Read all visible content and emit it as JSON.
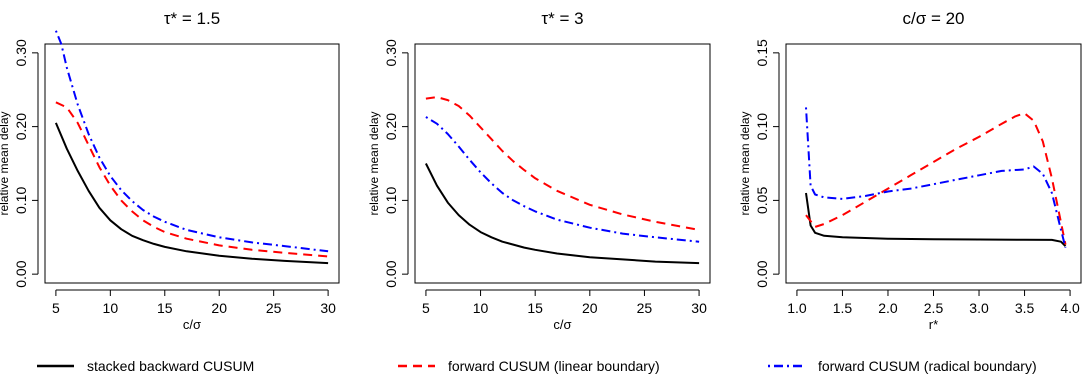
{
  "chart_data": [
    {
      "type": "line",
      "title": "τ* = 1.5",
      "xlabel": "c/σ",
      "ylabel": "relative mean delay",
      "xlim": [
        5,
        30
      ],
      "ylim": [
        0,
        0.3
      ],
      "xticks": [
        5,
        10,
        15,
        20,
        25,
        30
      ],
      "yticks": [
        0,
        0.1,
        0.2,
        0.3
      ],
      "xtick_labels": [
        "5",
        "10",
        "15",
        "20",
        "25",
        "30"
      ],
      "ytick_labels": [
        "0.00",
        "0.10",
        "0.20",
        "0.30"
      ],
      "series": [
        {
          "name": "stacked backward CUSUM",
          "color": "#000000",
          "dash": "solid",
          "x": [
            5,
            6,
            7,
            8,
            9,
            10,
            11,
            12,
            13,
            14,
            15,
            17,
            20,
            23,
            26,
            30
          ],
          "y": [
            0.205,
            0.17,
            0.14,
            0.113,
            0.09,
            0.073,
            0.061,
            0.052,
            0.046,
            0.041,
            0.037,
            0.031,
            0.025,
            0.021,
            0.018,
            0.015
          ]
        },
        {
          "name": "forward CUSUM (linear boundary)",
          "color": "#ff0000",
          "dash": "dashed",
          "x": [
            5,
            6,
            7,
            8,
            9,
            10,
            11,
            12,
            13,
            14,
            15,
            17,
            20,
            23,
            26,
            30
          ],
          "y": [
            0.233,
            0.226,
            0.205,
            0.175,
            0.145,
            0.12,
            0.1,
            0.085,
            0.073,
            0.064,
            0.057,
            0.048,
            0.039,
            0.033,
            0.029,
            0.024
          ]
        },
        {
          "name": "forward CUSUM (radical boundary)",
          "color": "#0000ff",
          "dash": "dotdash",
          "x": [
            5,
            5.5,
            6,
            7,
            8,
            9,
            10,
            11,
            12,
            13,
            14,
            15,
            17,
            20,
            23,
            26,
            30
          ],
          "y": [
            0.33,
            0.312,
            0.28,
            0.23,
            0.19,
            0.158,
            0.133,
            0.114,
            0.099,
            0.087,
            0.078,
            0.071,
            0.06,
            0.05,
            0.043,
            0.038,
            0.031
          ]
        }
      ]
    },
    {
      "type": "line",
      "title": "τ* = 3",
      "xlabel": "c/σ",
      "ylabel": "relative mean delay",
      "xlim": [
        5,
        30
      ],
      "ylim": [
        0,
        0.3
      ],
      "xticks": [
        5,
        10,
        15,
        20,
        25,
        30
      ],
      "yticks": [
        0,
        0.1,
        0.2,
        0.3
      ],
      "xtick_labels": [
        "5",
        "10",
        "15",
        "20",
        "25",
        "30"
      ],
      "ytick_labels": [
        "0.00",
        "0.10",
        "0.20",
        "0.30"
      ],
      "series": [
        {
          "name": "stacked backward CUSUM",
          "color": "#000000",
          "dash": "solid",
          "x": [
            5,
            6,
            7,
            8,
            9,
            10,
            11,
            12,
            13,
            14,
            15,
            17,
            20,
            23,
            26,
            30
          ],
          "y": [
            0.15,
            0.12,
            0.097,
            0.08,
            0.067,
            0.057,
            0.05,
            0.044,
            0.04,
            0.036,
            0.033,
            0.028,
            0.023,
            0.02,
            0.017,
            0.015
          ]
        },
        {
          "name": "forward CUSUM (linear boundary)",
          "color": "#ff0000",
          "dash": "dashed",
          "x": [
            5,
            6,
            7,
            8,
            9,
            10,
            11,
            12,
            13,
            14,
            15,
            17,
            20,
            23,
            26,
            30
          ],
          "y": [
            0.238,
            0.24,
            0.236,
            0.228,
            0.215,
            0.199,
            0.183,
            0.167,
            0.153,
            0.141,
            0.13,
            0.113,
            0.094,
            0.081,
            0.071,
            0.06
          ]
        },
        {
          "name": "forward CUSUM (radical boundary)",
          "color": "#0000ff",
          "dash": "dotdash",
          "x": [
            5,
            6,
            7,
            8,
            9,
            10,
            11,
            12,
            13,
            14,
            15,
            17,
            20,
            23,
            26,
            30
          ],
          "y": [
            0.213,
            0.204,
            0.19,
            0.173,
            0.155,
            0.138,
            0.123,
            0.11,
            0.1,
            0.092,
            0.085,
            0.074,
            0.063,
            0.055,
            0.05,
            0.044
          ]
        }
      ]
    },
    {
      "type": "line",
      "title": "c/σ = 20",
      "xlabel": "r*",
      "ylabel": "relative mean delay",
      "xlim": [
        1.0,
        4.0
      ],
      "ylim": [
        0,
        0.15
      ],
      "xticks": [
        1.0,
        1.5,
        2.0,
        2.5,
        3.0,
        3.5,
        4.0
      ],
      "yticks": [
        0,
        0.05,
        0.1,
        0.15
      ],
      "xtick_labels": [
        "1.0",
        "1.5",
        "2.0",
        "2.5",
        "3.0",
        "3.5",
        "4.0"
      ],
      "ytick_labels": [
        "0.00",
        "0.05",
        "0.10",
        "0.15"
      ],
      "series": [
        {
          "name": "stacked backward CUSUM",
          "color": "#000000",
          "dash": "solid",
          "x": [
            1.1,
            1.15,
            1.2,
            1.3,
            1.5,
            2.0,
            2.5,
            3.0,
            3.5,
            3.8,
            3.9,
            3.95
          ],
          "y": [
            0.055,
            0.033,
            0.028,
            0.026,
            0.025,
            0.024,
            0.0237,
            0.0235,
            0.0233,
            0.0232,
            0.022,
            0.019
          ]
        },
        {
          "name": "forward CUSUM (linear boundary)",
          "color": "#ff0000",
          "dash": "dashed",
          "x": [
            1.1,
            1.2,
            1.3,
            1.5,
            1.75,
            2.0,
            2.25,
            2.5,
            2.75,
            3.0,
            3.25,
            3.4,
            3.5,
            3.6,
            3.7,
            3.8,
            3.9,
            3.95
          ],
          "y": [
            0.04,
            0.032,
            0.034,
            0.04,
            0.049,
            0.058,
            0.067,
            0.076,
            0.085,
            0.093,
            0.102,
            0.107,
            0.109,
            0.104,
            0.09,
            0.065,
            0.035,
            0.02
          ]
        },
        {
          "name": "forward CUSUM (radical boundary)",
          "color": "#0000ff",
          "dash": "dotdash",
          "x": [
            1.1,
            1.15,
            1.2,
            1.3,
            1.5,
            1.75,
            2.0,
            2.25,
            2.5,
            2.75,
            3.0,
            3.25,
            3.5,
            3.6,
            3.7,
            3.8,
            3.9,
            3.95
          ],
          "y": [
            0.113,
            0.06,
            0.054,
            0.052,
            0.051,
            0.053,
            0.056,
            0.058,
            0.061,
            0.064,
            0.067,
            0.07,
            0.071,
            0.073,
            0.068,
            0.055,
            0.03,
            0.018
          ]
        }
      ]
    }
  ],
  "legend": [
    {
      "label": "stacked backward CUSUM",
      "color": "#000000",
      "dash": "solid"
    },
    {
      "label": "forward CUSUM (linear boundary)",
      "color": "#ff0000",
      "dash": "dashed"
    },
    {
      "label": "forward CUSUM (radical boundary)",
      "color": "#0000ff",
      "dash": "dotdash"
    }
  ]
}
